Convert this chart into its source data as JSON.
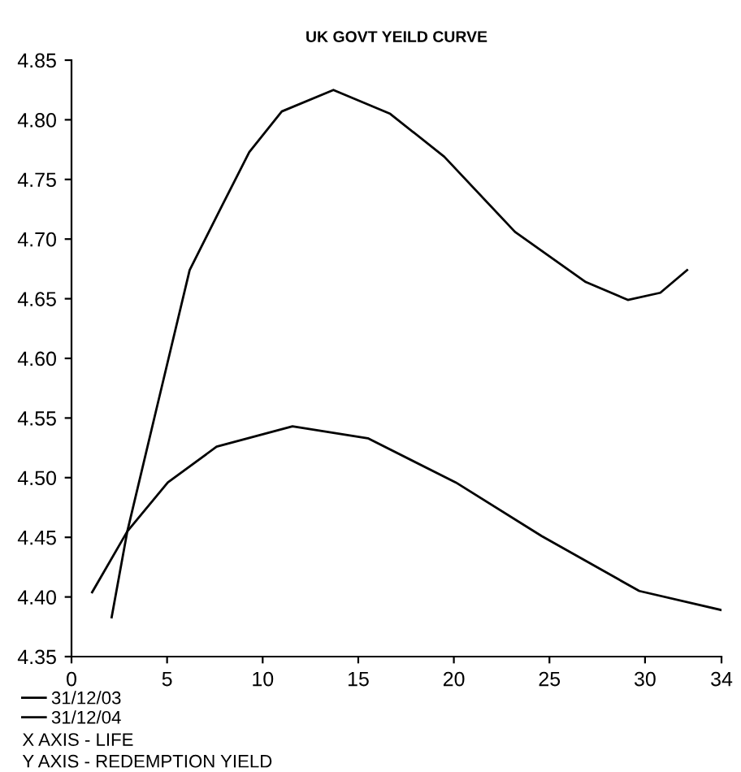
{
  "chart_data": {
    "type": "line",
    "title": "UK GOVT YEILD CURVE",
    "series": [
      {
        "name": "31/12/03",
        "color": "#000000",
        "x": [
          2.1,
          2.92,
          4.48,
          6.18,
          7.59,
          9.3,
          11.0,
          13.7,
          16.67,
          19.5,
          23.2,
          26.9,
          29.1,
          30.8,
          32.2
        ],
        "values": [
          4.383,
          4.455,
          4.56,
          4.674,
          4.719,
          4.773,
          4.807,
          4.825,
          4.805,
          4.769,
          4.706,
          4.664,
          4.649,
          4.655,
          4.674
        ]
      },
      {
        "name": "31/12/04",
        "color": "#000000",
        "x": [
          1.08,
          2.92,
          5.04,
          7.59,
          11.56,
          15.5,
          20.1,
          24.6,
          29.7,
          34.0
        ],
        "values": [
          4.404,
          4.455,
          4.496,
          4.526,
          4.543,
          4.533,
          4.496,
          4.451,
          4.405,
          4.389
        ]
      }
    ],
    "xlim": [
      0,
      34
    ],
    "xticks": [
      0,
      5,
      10,
      15,
      20,
      25,
      30,
      34
    ],
    "ylim": [
      4.35,
      4.85
    ],
    "yticks": [
      {
        "value": 4.35,
        "label": "4.35"
      },
      {
        "value": 4.4,
        "label": "4.40"
      },
      {
        "value": 4.45,
        "label": "4.45"
      },
      {
        "value": 4.5,
        "label": "4.50"
      },
      {
        "value": 4.55,
        "label": "4.55"
      },
      {
        "value": 4.6,
        "label": "4.60"
      },
      {
        "value": 4.65,
        "label": "4.65"
      },
      {
        "value": 4.7,
        "label": "4.70"
      },
      {
        "value": 4.75,
        "label": "4.75"
      },
      {
        "value": 4.8,
        "label": "4.80"
      },
      {
        "value": 4.85,
        "label": "4.85"
      }
    ],
    "grid": false,
    "legend": "bottom left",
    "marker": "none",
    "line_style": "solid",
    "annotations": [
      "X AXIS - LIFE",
      "Y AXIS - REDEMPTION YIELD"
    ]
  }
}
